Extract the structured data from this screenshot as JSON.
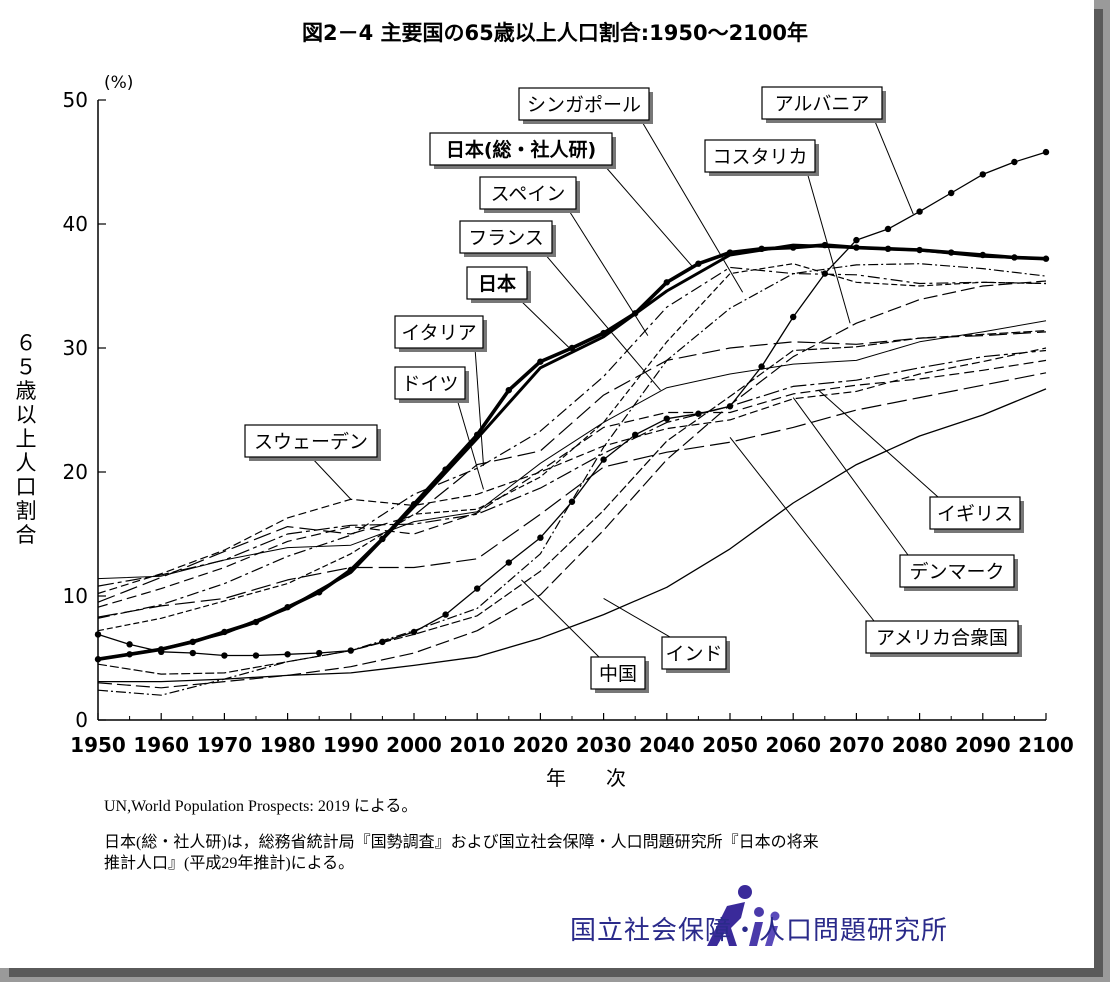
{
  "title": "図2－4 主要国の65歳以上人口割合:1950～2100年",
  "y_unit": "(%)",
  "ylabel_chars": [
    "６",
    "５",
    "歳",
    "以",
    "上",
    "人",
    "口",
    "割",
    "合"
  ],
  "xlabel": "年　　次",
  "source_note": "UN,World Population Prospects: 2019 による。",
  "note_line1": "日本(総・社人研)は，総務省統計局『国勢調査』および国立社会保障・人口問題研究所『日本の将来",
  "note_line2": "推計人口』(平成29年推計)による。",
  "org_name": "国立社会保障・人口問題研究所",
  "chart_data": {
    "type": "line",
    "title": "図2－4 主要国の65歳以上人口割合:1950～2100年",
    "xlabel": "年　　次",
    "ylabel": "６５歳以上人口割合",
    "xlim": [
      1950,
      2100
    ],
    "ylim": [
      0,
      50
    ],
    "x_ticks": [
      1950,
      1960,
      1970,
      1980,
      1990,
      2000,
      2010,
      2020,
      2030,
      2040,
      2050,
      2060,
      2070,
      2080,
      2090,
      2100
    ],
    "y_ticks": [
      0,
      10,
      20,
      30,
      40,
      50
    ],
    "grid": false,
    "legend": "callout labels",
    "series": [
      {
        "name": "日本(総・社人研)",
        "style": "bold-marker",
        "x": [
          1950,
          1955,
          1960,
          1965,
          1970,
          1975,
          1980,
          1985,
          1990,
          1995,
          2000,
          2005,
          2010,
          2015,
          2020,
          2025,
          2030,
          2035,
          2040,
          2045,
          2050,
          2055,
          2060,
          2065,
          2070,
          2075,
          2080,
          2085,
          2090,
          2095,
          2100
        ],
        "y": [
          4.9,
          5.3,
          5.7,
          6.3,
          7.1,
          7.9,
          9.1,
          10.3,
          12.1,
          14.6,
          17.4,
          20.2,
          23.0,
          26.6,
          28.9,
          30.0,
          31.2,
          32.8,
          35.3,
          36.8,
          37.7,
          38.0,
          38.1,
          38.3,
          38.1,
          38.0,
          37.9,
          37.7,
          37.5,
          37.3,
          37.2
        ]
      },
      {
        "name": "日本",
        "style": "bold",
        "x": [
          1950,
          1960,
          1970,
          1980,
          1990,
          2000,
          2010,
          2020,
          2030,
          2040,
          2050,
          2060,
          2070,
          2080,
          2090,
          2100
        ],
        "y": [
          4.9,
          5.7,
          7.0,
          9.0,
          11.9,
          17.2,
          22.7,
          28.4,
          30.9,
          34.6,
          37.5,
          38.3,
          38.1,
          37.9,
          37.4,
          37.2
        ]
      },
      {
        "name": "アルバニア",
        "style": "marker",
        "x": [
          1950,
          1955,
          1960,
          1965,
          1970,
          1975,
          1980,
          1985,
          1990,
          1995,
          2000,
          2005,
          2010,
          2015,
          2020,
          2025,
          2030,
          2035,
          2040,
          2045,
          2050,
          2055,
          2060,
          2065,
          2070,
          2075,
          2080,
          2085,
          2090,
          2095,
          2100
        ],
        "y": [
          6.9,
          6.1,
          5.5,
          5.4,
          5.2,
          5.2,
          5.3,
          5.4,
          5.6,
          6.3,
          7.1,
          8.5,
          10.6,
          12.7,
          14.7,
          17.6,
          21.0,
          23.0,
          24.3,
          24.7,
          25.3,
          28.5,
          32.5,
          36.0,
          38.7,
          39.6,
          41.0,
          42.5,
          44.0,
          45.0,
          45.8
        ]
      },
      {
        "name": "コスタリカ",
        "style": "longdash",
        "x": [
          1950,
          1960,
          1970,
          1980,
          1990,
          2000,
          2010,
          2020,
          2030,
          2040,
          2050,
          2060,
          2070,
          2080,
          2090,
          2100
        ],
        "y": [
          3.0,
          2.6,
          3.1,
          3.6,
          4.3,
          5.4,
          7.2,
          10.1,
          15.3,
          21.0,
          25.4,
          29.3,
          32.0,
          33.9,
          35.0,
          35.4
        ]
      },
      {
        "name": "シンガポール",
        "style": "dashdot",
        "x": [
          1950,
          1960,
          1970,
          1980,
          1990,
          2000,
          2010,
          2020,
          2030,
          2040,
          2050,
          2060,
          2070,
          2080,
          2090,
          2100
        ],
        "y": [
          2.4,
          2.0,
          3.3,
          4.7,
          5.6,
          7.2,
          9.0,
          13.4,
          22.0,
          29.0,
          33.2,
          36.0,
          36.7,
          36.8,
          36.4,
          35.8
        ]
      },
      {
        "name": "スペイン",
        "style": "shortdash",
        "x": [
          1950,
          1960,
          1970,
          1980,
          1990,
          2000,
          2010,
          2020,
          2030,
          2040,
          2050,
          2060,
          2070,
          2080,
          2090,
          2100
        ],
        "y": [
          7.2,
          8.2,
          9.6,
          11.0,
          13.4,
          16.6,
          17.0,
          19.6,
          24.0,
          30.5,
          36.0,
          36.8,
          35.3,
          35.0,
          35.3,
          35.2
        ]
      },
      {
        "name": "イタリア",
        "style": "dashdot2",
        "x": [
          1950,
          1960,
          1970,
          1980,
          1990,
          2000,
          2010,
          2020,
          2030,
          2040,
          2050,
          2060,
          2070,
          2080,
          2090,
          2100
        ],
        "y": [
          8.2,
          9.3,
          11.0,
          13.2,
          14.9,
          18.2,
          20.3,
          23.3,
          27.7,
          33.3,
          36.5,
          36.0,
          35.9,
          35.2,
          35.3,
          35.2
        ]
      },
      {
        "name": "ドイツ",
        "style": "longdash2",
        "x": [
          1950,
          1960,
          1970,
          1980,
          1990,
          2000,
          2010,
          2020,
          2030,
          2040,
          2050,
          2060,
          2070,
          2080,
          2090,
          2100
        ],
        "y": [
          9.5,
          11.5,
          13.6,
          15.6,
          15.0,
          16.5,
          20.6,
          21.7,
          26.2,
          29.0,
          30.0,
          30.5,
          30.3,
          30.8,
          31.0,
          31.3
        ]
      },
      {
        "name": "フランス",
        "style": "thin",
        "x": [
          1950,
          1960,
          1970,
          1980,
          1990,
          2000,
          2010,
          2020,
          2030,
          2040,
          2050,
          2060,
          2070,
          2080,
          2090,
          2100
        ],
        "y": [
          11.4,
          11.6,
          12.9,
          13.9,
          14.1,
          16.0,
          16.8,
          20.7,
          24.0,
          26.8,
          27.9,
          28.7,
          29.0,
          30.5,
          31.3,
          32.2
        ]
      },
      {
        "name": "スウェーデン",
        "style": "dash3",
        "x": [
          1950,
          1960,
          1970,
          1980,
          1990,
          2000,
          2010,
          2020,
          2030,
          2040,
          2050,
          2060,
          2070,
          2080,
          2090,
          2100
        ],
        "y": [
          10.2,
          11.8,
          13.7,
          16.3,
          17.8,
          17.3,
          18.2,
          20.0,
          22.1,
          23.5,
          24.2,
          25.9,
          26.5,
          27.9,
          28.9,
          30.0
        ]
      },
      {
        "name": "イギリス",
        "style": "dashdot3",
        "x": [
          1950,
          1960,
          1970,
          1980,
          1990,
          2000,
          2010,
          2020,
          2030,
          2040,
          2050,
          2060,
          2070,
          2080,
          2090,
          2100
        ],
        "y": [
          10.8,
          11.7,
          12.9,
          15.0,
          15.7,
          15.8,
          16.6,
          18.7,
          21.5,
          24.0,
          25.3,
          26.9,
          27.4,
          28.4,
          29.3,
          29.8
        ]
      },
      {
        "name": "デンマーク",
        "style": "dash4",
        "x": [
          1950,
          1960,
          1970,
          1980,
          1990,
          2000,
          2010,
          2020,
          2030,
          2040,
          2050,
          2060,
          2070,
          2080,
          2090,
          2100
        ],
        "y": [
          9.1,
          10.6,
          12.3,
          14.4,
          15.6,
          15.0,
          16.7,
          20.1,
          23.6,
          24.8,
          24.8,
          26.3,
          27.0,
          27.5,
          28.2,
          29.0
        ]
      },
      {
        "name": "アメリカ合衆国",
        "style": "longdash3",
        "x": [
          1950,
          1960,
          1970,
          1980,
          1990,
          2000,
          2010,
          2020,
          2030,
          2040,
          2050,
          2060,
          2070,
          2080,
          2090,
          2100
        ],
        "y": [
          8.3,
          9.2,
          9.8,
          11.3,
          12.3,
          12.3,
          13.0,
          16.6,
          20.4,
          21.6,
          22.4,
          23.6,
          25.0,
          26.0,
          27.0,
          28.0
        ]
      },
      {
        "name": "中国",
        "style": "dash5",
        "x": [
          1950,
          1960,
          1970,
          1980,
          1990,
          2000,
          2010,
          2020,
          2030,
          2040,
          2050,
          2060,
          2070,
          2080,
          2090,
          2100
        ],
        "y": [
          4.5,
          3.7,
          3.8,
          4.7,
          5.6,
          6.9,
          8.4,
          12.0,
          16.9,
          22.5,
          26.1,
          29.8,
          30.1,
          30.8,
          31.1,
          31.4
        ]
      },
      {
        "name": "インド",
        "style": "solid",
        "x": [
          1950,
          1960,
          1970,
          1980,
          1990,
          2000,
          2010,
          2020,
          2030,
          2040,
          2050,
          2060,
          2070,
          2080,
          2090,
          2100
        ],
        "y": [
          3.1,
          3.1,
          3.3,
          3.6,
          3.8,
          4.4,
          5.1,
          6.6,
          8.5,
          10.7,
          13.8,
          17.5,
          20.6,
          22.9,
          24.6,
          26.7
        ]
      }
    ],
    "callouts": [
      {
        "label": "シンガポール",
        "series": "シンガポール"
      },
      {
        "label": "アルバニア",
        "series": "アルバニア"
      },
      {
        "label": "日本(総・社人研)",
        "series": "日本(総・社人研)"
      },
      {
        "label": "コスタリカ",
        "series": "コスタリカ"
      },
      {
        "label": "スペイン",
        "series": "スペイン"
      },
      {
        "label": "フランス",
        "series": "フランス"
      },
      {
        "label": "日本",
        "series": "日本"
      },
      {
        "label": "イタリア",
        "series": "イタリア"
      },
      {
        "label": "ドイツ",
        "series": "ドイツ"
      },
      {
        "label": "スウェーデン",
        "series": "スウェーデン"
      },
      {
        "label": "イギリス",
        "series": "イギリス"
      },
      {
        "label": "デンマーク",
        "series": "デンマーク"
      },
      {
        "label": "アメリカ合衆国",
        "series": "アメリカ合衆国"
      },
      {
        "label": "中国",
        "series": "中国"
      },
      {
        "label": "インド",
        "series": "インド"
      }
    ]
  }
}
